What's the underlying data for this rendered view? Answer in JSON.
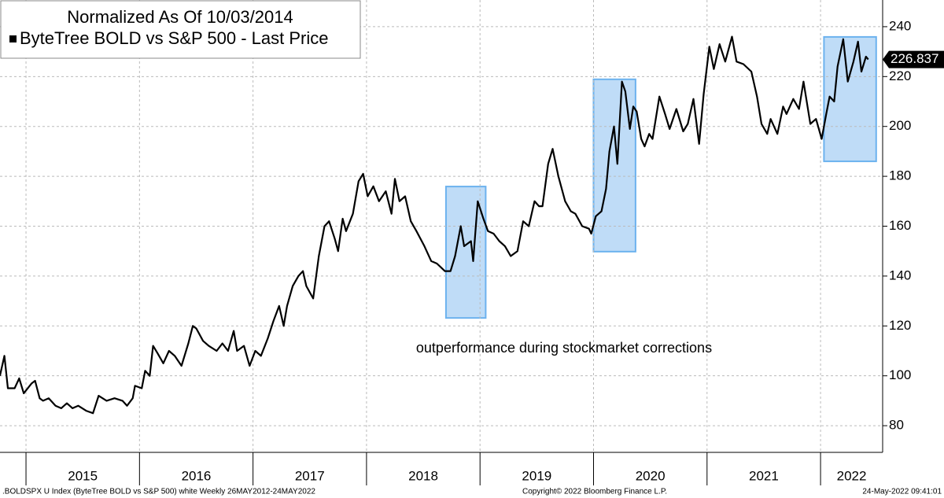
{
  "chart_data": {
    "type": "line",
    "title": "Normalized As Of 10/03/2014",
    "annotation": "outperformance during stockmarket corrections",
    "footer_left": ".BOLDSPX U Index (ByteTree BOLD vs S&P 500) white  Weekly 26MAY2012-24MAY2022",
    "footer_center": "Copyright© 2022 Bloomberg Finance L.P.",
    "footer_right": "24-May-2022 09:41:01",
    "last_value_label": "226.837",
    "xlim": [
      2014.771,
      2022.547
    ],
    "xticks": [
      2015,
      2016,
      2017,
      2018,
      2019,
      2020,
      2021,
      2022
    ],
    "ylim": [
      69.3,
      250.7
    ],
    "yticks": [
      80,
      100,
      120,
      140,
      160,
      180,
      200,
      220,
      240
    ],
    "grid": true,
    "highlights": [
      {
        "x": [
          2018.7,
          2019.05
        ],
        "y": [
          123.2,
          175.9
        ]
      },
      {
        "x": [
          2020.0,
          2020.37
        ],
        "y": [
          149.8,
          218.9
        ]
      },
      {
        "x": [
          2022.03,
          2022.49
        ],
        "y": [
          186.0,
          235.9
        ]
      }
    ],
    "highlight_color": "#bfdcf7",
    "highlight_edge": "#6cb2ee",
    "x": [
      2014.77,
      2014.81,
      2014.84,
      2014.9,
      2014.94,
      2014.98,
      2015.05,
      2015.08,
      2015.12,
      2015.15,
      2015.2,
      2015.26,
      2015.31,
      2015.36,
      2015.41,
      2015.46,
      2015.53,
      2015.59,
      2015.64,
      2015.71,
      2015.78,
      2015.85,
      2015.89,
      2015.94,
      2015.96,
      2016.02,
      2016.05,
      2016.09,
      2016.12,
      2016.16,
      2016.21,
      2016.26,
      2016.31,
      2016.37,
      2016.43,
      2016.47,
      2016.5,
      2016.56,
      2016.61,
      2016.68,
      2016.73,
      2016.78,
      2016.83,
      2016.86,
      2016.92,
      2016.97,
      2017.02,
      2017.07,
      2017.13,
      2017.18,
      2017.23,
      2017.27,
      2017.3,
      2017.35,
      2017.4,
      2017.44,
      2017.47,
      2017.53,
      2017.58,
      2017.63,
      2017.67,
      2017.72,
      2017.75,
      2017.79,
      2017.82,
      2017.88,
      2017.93,
      2017.97,
      2018.01,
      2018.06,
      2018.11,
      2018.17,
      2018.22,
      2018.25,
      2018.29,
      2018.34,
      2018.39,
      2018.44,
      2018.51,
      2018.57,
      2018.62,
      2018.69,
      2018.74,
      2018.78,
      2018.83,
      2018.86,
      2018.92,
      2018.94,
      2018.98,
      2019.03,
      2019.07,
      2019.12,
      2019.17,
      2019.22,
      2019.27,
      2019.33,
      2019.38,
      2019.43,
      2019.48,
      2019.52,
      2019.55,
      2019.6,
      2019.64,
      2019.69,
      2019.75,
      2019.8,
      2019.84,
      2019.9,
      2019.96,
      2019.98,
      2020.02,
      2020.07,
      2020.11,
      2020.14,
      2020.18,
      2020.21,
      2020.25,
      2020.28,
      2020.32,
      2020.35,
      2020.38,
      2020.42,
      2020.45,
      2020.49,
      2020.52,
      2020.58,
      2020.63,
      2020.67,
      2020.73,
      2020.79,
      2020.83,
      2020.88,
      2020.93,
      2020.97,
      2021.02,
      2021.06,
      2021.11,
      2021.16,
      2021.22,
      2021.26,
      2021.32,
      2021.39,
      2021.44,
      2021.48,
      2021.53,
      2021.56,
      2021.62,
      2021.67,
      2021.7,
      2021.76,
      2021.81,
      2021.85,
      2021.91,
      2021.96,
      2022.01,
      2022.05,
      2022.08,
      2022.12,
      2022.15,
      2022.2,
      2022.24,
      2022.29,
      2022.33,
      2022.36,
      2022.4,
      2022.42
    ],
    "series": [
      {
        "name": "ByteTree BOLD vs S&P 500 - Last Price",
        "color": "#000000",
        "values": [
          100,
          108,
          95,
          95,
          99,
          93,
          97,
          98,
          91,
          90,
          91,
          88,
          87,
          89,
          87,
          88,
          86,
          85,
          92,
          90,
          91,
          90,
          88,
          91,
          96,
          95,
          102,
          100,
          112,
          109,
          105,
          110,
          108,
          104,
          113,
          120,
          119,
          114,
          112,
          110,
          113,
          110,
          118,
          110,
          112,
          104,
          110,
          108,
          115,
          122,
          128,
          120,
          128,
          136,
          140,
          142,
          136,
          131,
          148,
          160,
          162,
          155,
          150,
          163,
          158,
          165,
          178,
          181,
          172,
          176,
          170,
          174,
          165,
          179,
          170,
          172,
          162,
          158,
          152,
          146,
          145,
          142,
          142,
          148,
          160,
          152,
          154,
          146,
          170,
          163,
          158,
          157,
          154,
          152,
          148,
          150,
          162,
          160,
          170,
          168,
          168,
          185,
          191,
          180,
          170,
          166,
          165,
          160,
          159,
          157,
          164,
          166,
          175,
          190,
          200,
          185,
          218,
          214,
          199,
          208,
          206,
          195,
          192,
          197,
          195,
          212,
          205,
          199,
          207,
          198,
          201,
          211,
          193,
          213,
          232,
          223,
          233,
          226,
          236,
          226,
          225,
          222,
          212,
          201,
          197,
          203,
          197,
          208,
          205,
          211,
          207,
          218,
          201,
          203,
          195,
          205,
          212,
          210,
          224,
          235,
          218,
          226,
          234,
          222,
          228,
          226.837
        ]
      }
    ]
  }
}
